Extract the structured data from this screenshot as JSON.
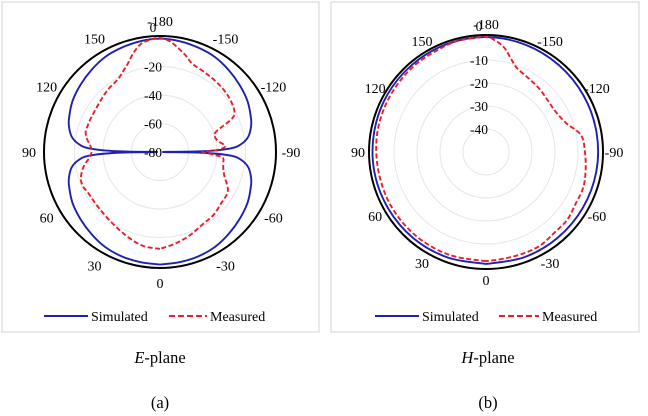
{
  "colors": {
    "simulated": "#1f1fb4",
    "measured": "#e8202a",
    "outline": "#000000",
    "grid": "#e6e6e6",
    "panel_border": "#d4d4d4"
  },
  "chart_data": [
    {
      "type": "polar",
      "caption_italic": "E",
      "caption_rest": "-plane",
      "sublabel": "(a)",
      "angle_labels": [
        "-180",
        "-150",
        "-120",
        "-90",
        "-60",
        "-30",
        "0",
        "30",
        "60",
        "90",
        "120",
        "150"
      ],
      "radial_labels": [
        "0",
        "-20",
        "-40",
        "-60",
        "-80"
      ],
      "rlim": [
        -80,
        0
      ],
      "series": [
        {
          "name": "Simulated",
          "style": "solid",
          "theta": [
            0,
            10,
            20,
            30,
            40,
            50,
            60,
            70,
            75,
            80,
            84,
            87,
            89,
            90,
            91,
            93,
            96,
            100,
            105,
            110,
            120,
            130,
            140,
            150,
            160,
            170,
            180,
            190,
            200,
            210,
            220,
            230,
            240,
            250,
            255,
            260,
            264,
            267,
            269,
            270,
            271,
            273,
            276,
            280,
            285,
            290,
            300,
            310,
            320,
            330,
            340,
            350,
            360
          ],
          "r": [
            -1,
            -1.5,
            -2,
            -3,
            -5,
            -7,
            -9,
            -12,
            -14,
            -17,
            -22,
            -30,
            -50,
            -78,
            -50,
            -30,
            -22,
            -17,
            -14,
            -12,
            -9,
            -7,
            -5,
            -3,
            -2,
            -1,
            -0.5,
            -1,
            -2,
            -3,
            -5,
            -7,
            -9,
            -12,
            -14,
            -17,
            -22,
            -30,
            -50,
            -78,
            -50,
            -30,
            -22,
            -17,
            -14,
            -12,
            -9,
            -7,
            -5,
            -3,
            -2,
            -1.5,
            -1
          ]
        },
        {
          "name": "Measured",
          "style": "dashed",
          "theta": [
            0,
            10,
            20,
            30,
            40,
            50,
            60,
            65,
            70,
            75,
            80,
            85,
            90,
            95,
            100,
            105,
            110,
            115,
            120,
            130,
            140,
            150,
            155,
            160,
            165,
            170,
            175,
            180,
            185,
            190,
            195,
            200,
            210,
            220,
            230,
            240,
            245,
            250,
            255,
            260,
            265,
            268,
            270,
            272,
            275,
            280,
            285,
            290,
            300,
            310,
            320,
            330,
            340,
            350,
            360
          ],
          "r": [
            -12,
            -13,
            -16,
            -19,
            -21,
            -22,
            -22,
            -21,
            -21,
            -23,
            -26,
            -30,
            -32,
            -31,
            -28,
            -26,
            -26,
            -26,
            -26,
            -25,
            -23,
            -21,
            -18,
            -14,
            -8,
            -3,
            -1,
            0,
            -2,
            -6,
            -10,
            -14,
            -16,
            -17,
            -18,
            -20,
            -24,
            -38,
            -40,
            -38,
            -34,
            -40,
            -50,
            -45,
            -36,
            -35,
            -34,
            -32,
            -25,
            -24,
            -22,
            -21,
            -18,
            -15,
            -12
          ]
        }
      ]
    },
    {
      "type": "polar",
      "caption_italic": "H",
      "caption_rest": "-plane",
      "sublabel": "(b)",
      "angle_labels": [
        "-180",
        "-150",
        "-120",
        "-90",
        "-60",
        "-30",
        "0",
        "30",
        "60",
        "90",
        "120",
        "150"
      ],
      "radial_labels": [
        "0",
        "-10",
        "-20",
        "-30",
        "-40"
      ],
      "rlim": [
        -50,
        0
      ],
      "series": [
        {
          "name": "Simulated",
          "style": "solid",
          "theta": [
            0,
            20,
            40,
            60,
            80,
            100,
            120,
            140,
            160,
            180,
            200,
            220,
            240,
            260,
            280,
            300,
            320,
            340,
            360
          ],
          "r": [
            -1.3,
            -1.2,
            -1.0,
            -0.9,
            -0.7,
            -0.6,
            -0.4,
            -0.3,
            -0.1,
            0,
            -0.3,
            -0.7,
            -1.0,
            -1.2,
            -1.3,
            -1.4,
            -1.4,
            -1.3,
            -1.3
          ]
        },
        {
          "name": "Measured",
          "style": "dashed",
          "theta": [
            0,
            20,
            40,
            60,
            80,
            100,
            120,
            140,
            160,
            170,
            180,
            185,
            190,
            195,
            200,
            210,
            220,
            230,
            240,
            250,
            260,
            270,
            280,
            290,
            300,
            310,
            320,
            330,
            340,
            350,
            360
          ],
          "r": [
            -2.5,
            -2.5,
            -2.5,
            -2.5,
            -2.5,
            -2,
            -1.7,
            -1.2,
            -0.5,
            -0.2,
            0,
            -1.5,
            -4,
            -8,
            -11,
            -13,
            -14,
            -15,
            -15,
            -13,
            -8,
            -7,
            -6,
            -5,
            -5,
            -4,
            -4,
            -3,
            -3,
            -3,
            -2.5
          ]
        }
      ]
    }
  ]
}
